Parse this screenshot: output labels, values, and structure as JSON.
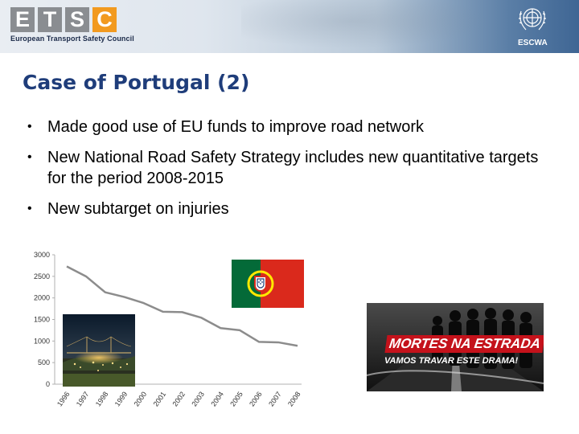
{
  "header": {
    "logo_letters": [
      "E",
      "T",
      "S",
      "C"
    ],
    "logo_subtitle": "European Transport Safety Council",
    "partner_label": "ESCWA"
  },
  "slide": {
    "title": "Case of Portugal (2)",
    "bullets": [
      "Made good use of EU funds to improve road network",
      "New National Road Safety Strategy includes new quantitative targets for the period 2008-2015",
      "New subtarget on injuries"
    ]
  },
  "chart_data": {
    "type": "line",
    "x": [
      "1996",
      "1997",
      "1998",
      "1999",
      "2000",
      "2001",
      "2002",
      "2003",
      "2004",
      "2005",
      "2006",
      "2007",
      "2008"
    ],
    "values": [
      2730,
      2500,
      2130,
      2020,
      1880,
      1680,
      1670,
      1540,
      1300,
      1250,
      980,
      970,
      890
    ],
    "ylim": [
      0,
      3000
    ],
    "y_ticks": [
      "0",
      "500",
      "1000",
      "1500",
      "2000",
      "2500",
      "3000"
    ],
    "line_color": "#8c8c8c",
    "grid": false
  },
  "poster": {
    "headline": "MORTES NA ESTRADA",
    "slogan": "VAMOS TRAVAR ESTE DRAMA!"
  },
  "colors": {
    "title": "#1f3d7a",
    "logo_grey": "#8a8d91",
    "logo_orange": "#f29a1f",
    "flag_green": "#046a38",
    "flag_red": "#da291c"
  }
}
